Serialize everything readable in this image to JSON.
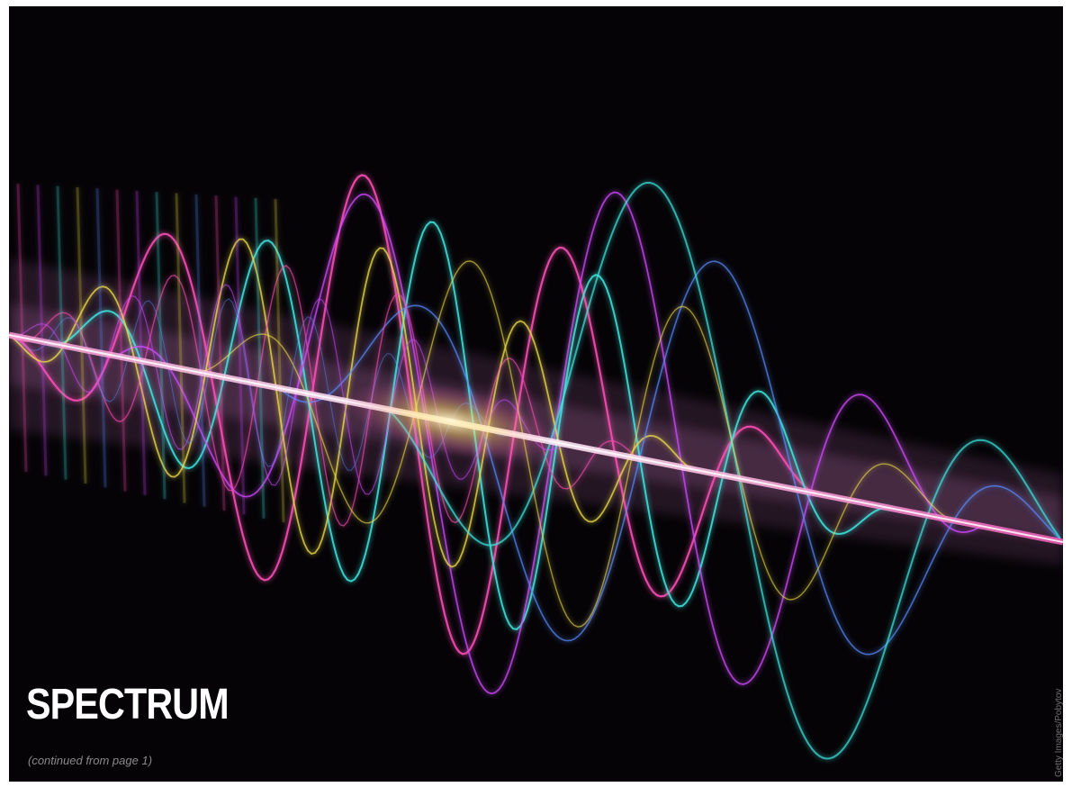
{
  "headline": "SPECTRUM",
  "continued_note": "(continued from page 1)",
  "photo_credit": "Getty Images/Pobytov",
  "colors": {
    "background": "#050306",
    "headline": "#ffffff",
    "caption": "#8a8a8a",
    "wave_pink": "#ff4fb8",
    "wave_magenta": "#d24bff",
    "wave_cyan": "#3fe6e0",
    "wave_yellow": "#f2e04a",
    "wave_blue": "#5a8dff"
  }
}
